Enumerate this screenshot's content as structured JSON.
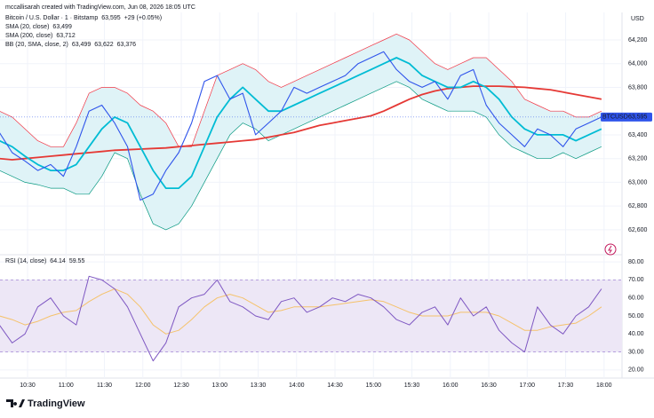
{
  "header": {
    "credit": "mccallisarah created with TradingView.com, Jun 08, 2026 18:05 UTC",
    "brand": "TradingView"
  },
  "chart_data": [
    {
      "type": "line",
      "title": "Bitcoin / U.S. Dollar · 1 · Bitstamp",
      "unit": "USD",
      "x": [
        608,
        618,
        628,
        638,
        648,
        658,
        668,
        678,
        688,
        698,
        708,
        718,
        728,
        738,
        748,
        758,
        768,
        778,
        788,
        798,
        808,
        818,
        828,
        838,
        848,
        858,
        868,
        878,
        888,
        898,
        908,
        918,
        928,
        938,
        948,
        958,
        968,
        978,
        988,
        998,
        1008,
        1018,
        1028,
        1038,
        1048,
        1058,
        1068,
        1078
      ],
      "xlim": [
        608.5,
        1094
      ],
      "xticks": [
        {
          "value": 630,
          "label": "10:30"
        },
        {
          "value": 660,
          "label": "11:00"
        },
        {
          "value": 690,
          "label": "11:30"
        },
        {
          "value": 720,
          "label": "12:00"
        },
        {
          "value": 750,
          "label": "12:30"
        },
        {
          "value": 780,
          "label": "13:00"
        },
        {
          "value": 810,
          "label": "13:30"
        },
        {
          "value": 840,
          "label": "14:00"
        },
        {
          "value": 870,
          "label": "14:30"
        },
        {
          "value": 900,
          "label": "15:00"
        },
        {
          "value": 930,
          "label": "15:30"
        },
        {
          "value": 960,
          "label": "16:00"
        },
        {
          "value": 990,
          "label": "16:30"
        },
        {
          "value": 1020,
          "label": "17:00"
        },
        {
          "value": 1050,
          "label": "17:30"
        },
        {
          "value": 1080,
          "label": "18:00"
        }
      ],
      "ylim": [
        62420,
        64424
      ],
      "yticks": [
        {
          "value": 62600,
          "label": "62,600"
        },
        {
          "value": 62800,
          "label": "62,800"
        },
        {
          "value": 63000,
          "label": "63,000"
        },
        {
          "value": 63200,
          "label": "63,200"
        },
        {
          "value": 63400,
          "label": "63,400"
        },
        {
          "value": 63800,
          "label": "63,800"
        },
        {
          "value": 64000,
          "label": "64,000"
        },
        {
          "value": 64200,
          "label": "64,200"
        }
      ],
      "series": [
        {
          "name": "BTCUSD",
          "color": "#2f54eb",
          "last": "63,595",
          "change": "+29 (+0.05%)",
          "values": [
            63420,
            63250,
            63180,
            63100,
            63150,
            63050,
            63300,
            63600,
            63650,
            63500,
            63300,
            62850,
            62900,
            63100,
            63250,
            63500,
            63850,
            63900,
            63700,
            63750,
            63400,
            63500,
            63600,
            63800,
            63750,
            63800,
            63850,
            63900,
            64000,
            64050,
            64100,
            63950,
            63850,
            63800,
            63850,
            63700,
            63900,
            63950,
            63650,
            63500,
            63400,
            63300,
            63450,
            63400,
            63300,
            63450,
            63500,
            63550
          ]
        },
        {
          "name": "SMA (20, close)",
          "color": "#00bcd4",
          "last": "63,499",
          "values": [
            63350,
            63300,
            63220,
            63150,
            63100,
            63100,
            63150,
            63300,
            63450,
            63550,
            63500,
            63300,
            63100,
            62950,
            62950,
            63050,
            63300,
            63550,
            63700,
            63800,
            63700,
            63600,
            63600,
            63650,
            63700,
            63750,
            63800,
            63850,
            63900,
            63950,
            64000,
            64050,
            64000,
            63900,
            63850,
            63800,
            63800,
            63850,
            63800,
            63700,
            63550,
            63450,
            63400,
            63400,
            63400,
            63350,
            63400,
            63450
          ]
        },
        {
          "name": "SMA (200, close)",
          "color": "#e53935",
          "last": "63,712",
          "values": [
            63200,
            63190,
            63200,
            63210,
            63220,
            63230,
            63240,
            63250,
            63260,
            63270,
            63275,
            63280,
            63285,
            63290,
            63300,
            63310,
            63320,
            63330,
            63340,
            63350,
            63360,
            63380,
            63400,
            63420,
            63450,
            63480,
            63500,
            63520,
            63540,
            63560,
            63600,
            63650,
            63700,
            63740,
            63770,
            63790,
            63800,
            63810,
            63810,
            63810,
            63805,
            63800,
            63790,
            63780,
            63760,
            63740,
            63720,
            63700
          ]
        }
      ],
      "bands": {
        "name": "BB (20, SMA, close, 2)",
        "last": [
          "63,499",
          "63,622",
          "63,376"
        ],
        "upper_color": "#f23645",
        "lower_color": "#089981",
        "fill": "#dff3f7",
        "upper": [
          63600,
          63550,
          63450,
          63350,
          63300,
          63300,
          63500,
          63750,
          63800,
          63800,
          63750,
          63650,
          63600,
          63500,
          63300,
          63300,
          63600,
          63900,
          63950,
          64000,
          63950,
          63850,
          63800,
          63850,
          63900,
          63950,
          64000,
          64050,
          64100,
          64150,
          64200,
          64250,
          64200,
          64100,
          64000,
          63950,
          64000,
          64050,
          64050,
          63950,
          63850,
          63700,
          63650,
          63600,
          63600,
          63550,
          63550,
          63600
        ],
        "lower": [
          63100,
          63050,
          63000,
          62980,
          62950,
          62950,
          62900,
          62900,
          63050,
          63250,
          63200,
          62900,
          62650,
          62600,
          62650,
          62800,
          63000,
          63200,
          63400,
          63500,
          63450,
          63350,
          63400,
          63450,
          63500,
          63550,
          63600,
          63650,
          63700,
          63750,
          63800,
          63850,
          63800,
          63700,
          63650,
          63600,
          63600,
          63600,
          63550,
          63400,
          63300,
          63250,
          63200,
          63200,
          63250,
          63200,
          63250,
          63300
        ]
      }
    },
    {
      "type": "line",
      "title": "RSI (14, close)",
      "x": [
        608,
        618,
        628,
        638,
        648,
        658,
        668,
        678,
        688,
        698,
        708,
        718,
        728,
        738,
        748,
        758,
        768,
        778,
        788,
        798,
        808,
        818,
        828,
        838,
        848,
        858,
        868,
        878,
        888,
        898,
        908,
        918,
        928,
        938,
        948,
        958,
        968,
        978,
        988,
        998,
        1008,
        1018,
        1028,
        1038,
        1048,
        1058,
        1068,
        1078
      ],
      "ylim": [
        16,
        83.5
      ],
      "yticks": [
        {
          "value": 20,
          "label": "20.00"
        },
        {
          "value": 30,
          "label": "30.00"
        },
        {
          "value": 40,
          "label": "40.00"
        },
        {
          "value": 50,
          "label": "50.00"
        },
        {
          "value": 60,
          "label": "60.00"
        },
        {
          "value": 70,
          "label": "70.00"
        },
        {
          "value": 80,
          "label": "80.00"
        }
      ],
      "band": [
        30,
        70
      ],
      "band_color": "#ede7f6",
      "series": [
        {
          "color": "#7e57c2",
          "last": "64.14",
          "values": [
            45,
            35,
            40,
            55,
            60,
            50,
            45,
            72,
            70,
            65,
            55,
            40,
            25,
            35,
            55,
            60,
            62,
            70,
            58,
            55,
            50,
            48,
            58,
            60,
            52,
            55,
            60,
            58,
            62,
            60,
            55,
            48,
            45,
            52,
            55,
            45,
            60,
            50,
            55,
            42,
            35,
            30,
            55,
            45,
            40,
            50,
            55,
            65
          ]
        },
        {
          "color": "#f5c26b",
          "last": "59.55",
          "values": [
            50,
            48,
            45,
            47,
            50,
            52,
            53,
            58,
            62,
            65,
            62,
            55,
            45,
            40,
            42,
            48,
            55,
            60,
            62,
            60,
            56,
            52,
            53,
            55,
            55,
            55,
            56,
            57,
            58,
            59,
            58,
            55,
            52,
            50,
            50,
            50,
            52,
            52,
            52,
            50,
            46,
            42,
            42,
            44,
            45,
            46,
            50,
            55
          ]
        }
      ]
    }
  ]
}
